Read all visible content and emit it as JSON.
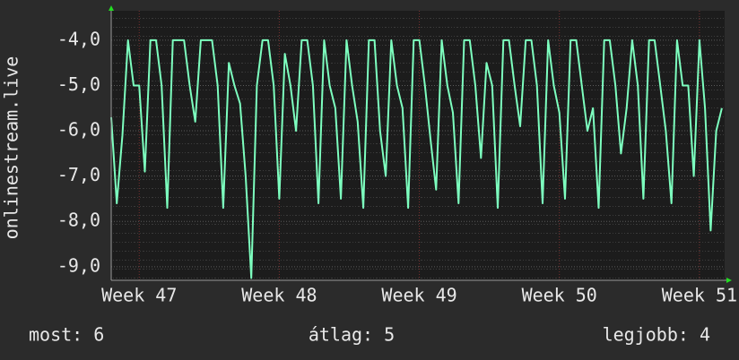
{
  "chart_data": {
    "type": "line",
    "y_label": "onlinestream.live",
    "annotations": [
      "most: 6",
      "átlag: 5",
      "legjobb: 4"
    ],
    "xlim": [
      46.8,
      51.18
    ],
    "xticks": [
      {
        "value": 47,
        "label": "Week 47"
      },
      {
        "value": 48,
        "label": "Week 48"
      },
      {
        "value": 49,
        "label": "Week 49"
      },
      {
        "value": 50,
        "label": "Week 50"
      },
      {
        "value": 51,
        "label": "Week 51"
      }
    ],
    "ylim": [
      -9.3,
      -3.35
    ],
    "yticks": [
      {
        "value": -9,
        "label": "-9,0"
      },
      {
        "value": -8,
        "label": "-8,0"
      },
      {
        "value": -7,
        "label": "-7,0"
      },
      {
        "value": -6,
        "label": "-6,0"
      },
      {
        "value": -5,
        "label": "-5,0"
      },
      {
        "value": -4,
        "label": "-4,0"
      }
    ],
    "grid": true,
    "x": [
      46.8,
      46.84,
      46.88,
      46.92,
      46.96,
      47.0,
      47.04,
      47.08,
      47.12,
      47.16,
      47.2,
      47.24,
      47.28,
      47.32,
      47.36,
      47.4,
      47.44,
      47.48,
      47.52,
      47.56,
      47.6,
      47.64,
      47.68,
      47.72,
      47.76,
      47.8,
      47.84,
      47.88,
      47.92,
      47.96,
      48.0,
      48.04,
      48.08,
      48.12,
      48.16,
      48.2,
      48.24,
      48.28,
      48.32,
      48.36,
      48.4,
      48.44,
      48.48,
      48.52,
      48.56,
      48.6,
      48.64,
      48.68,
      48.72,
      48.76,
      48.8,
      48.84,
      48.88,
      48.92,
      48.96,
      49.0,
      49.04,
      49.08,
      49.12,
      49.16,
      49.2,
      49.24,
      49.28,
      49.32,
      49.36,
      49.4,
      49.44,
      49.48,
      49.52,
      49.56,
      49.6,
      49.64,
      49.68,
      49.72,
      49.76,
      49.8,
      49.84,
      49.88,
      49.92,
      49.96,
      50.0,
      50.04,
      50.08,
      50.12,
      50.16,
      50.2,
      50.24,
      50.28,
      50.32,
      50.36,
      50.4,
      50.44,
      50.48,
      50.52,
      50.56,
      50.6,
      50.64,
      50.68,
      50.72,
      50.76,
      50.8,
      50.84,
      50.88,
      50.92,
      50.96,
      51.0,
      51.04,
      51.08,
      51.12,
      51.16
    ],
    "series": [
      {
        "color": "#7dffbf",
        "values": [
          -5.7,
          -7.6,
          -6.1,
          -4.0,
          -5.0,
          -5.0,
          -6.9,
          -4.0,
          -4.0,
          -5.0,
          -7.7,
          -4.0,
          -4.0,
          -4.0,
          -5.0,
          -5.8,
          -4.0,
          -4.0,
          -4.0,
          -5.0,
          -7.7,
          -4.5,
          -5.0,
          -5.4,
          -7.0,
          -9.25,
          -5.0,
          -4.0,
          -4.0,
          -5.0,
          -7.5,
          -4.3,
          -5.0,
          -6.0,
          -4.0,
          -4.0,
          -5.0,
          -7.6,
          -4.0,
          -5.0,
          -5.5,
          -7.5,
          -4.0,
          -5.0,
          -5.8,
          -7.7,
          -4.0,
          -4.0,
          -6.0,
          -7.0,
          -4.0,
          -5.0,
          -5.5,
          -7.7,
          -4.0,
          -4.0,
          -5.0,
          -6.2,
          -7.3,
          -4.0,
          -5.0,
          -5.6,
          -7.6,
          -4.0,
          -4.0,
          -5.0,
          -6.6,
          -4.5,
          -5.0,
          -7.7,
          -4.0,
          -4.0,
          -5.0,
          -5.9,
          -4.0,
          -4.0,
          -5.0,
          -7.6,
          -4.0,
          -5.0,
          -5.6,
          -7.5,
          -4.0,
          -4.0,
          -5.0,
          -6.0,
          -5.5,
          -7.7,
          -4.0,
          -4.0,
          -5.0,
          -6.5,
          -5.5,
          -4.0,
          -5.0,
          -7.5,
          -4.0,
          -4.0,
          -5.0,
          -6.0,
          -7.6,
          -4.0,
          -5.0,
          -5.0,
          -7.0,
          -4.0,
          -5.5,
          -8.2,
          -6.0,
          -5.5
        ]
      }
    ]
  }
}
